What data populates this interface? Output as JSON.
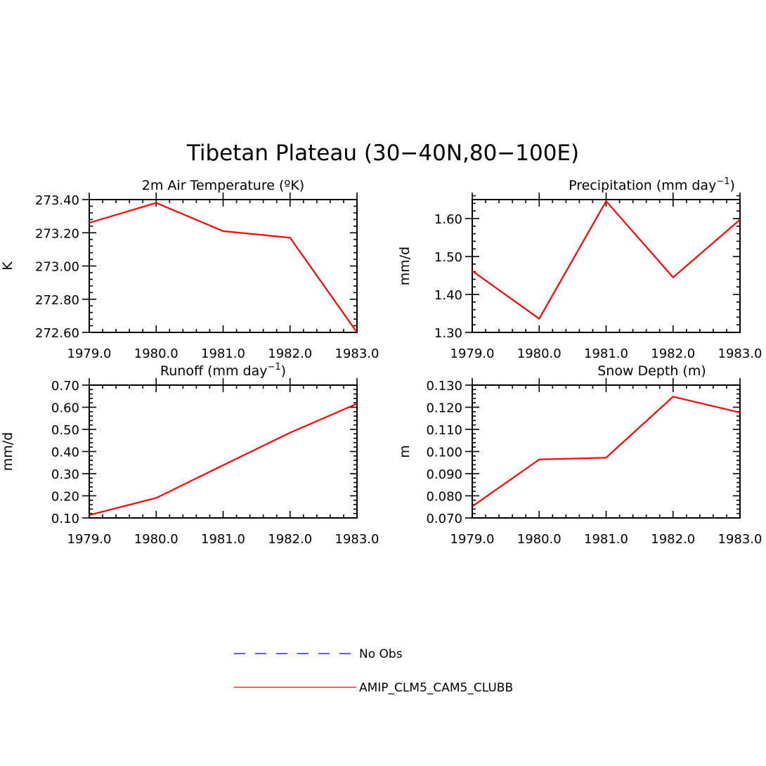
{
  "figure_title": "Tibetan Plateau (30−40N,80−100E)",
  "chart_data": [
    {
      "type": "line",
      "title": "2m Air Temperature (ºK)",
      "xlabel": "",
      "ylabel": "K",
      "x": [
        1979.0,
        1980.0,
        1981.0,
        1982.0,
        1983.0
      ],
      "xticks": [
        "1979.0",
        "1980.0",
        "1981.0",
        "1982.0",
        "1983.0"
      ],
      "xlim": [
        1979.0,
        1983.0
      ],
      "ylim": [
        272.6,
        273.4
      ],
      "yticks": [
        272.6,
        272.8,
        273.0,
        273.2,
        273.4
      ],
      "ytick_labels": [
        "272.60",
        "272.80",
        "273.00",
        "273.20",
        "273.40"
      ],
      "series": [
        {
          "name": "AMIP_CLM5_CAM5_CLUBB",
          "color": "#ff0000",
          "values": [
            273.26,
            273.38,
            273.21,
            273.17,
            272.6
          ]
        }
      ]
    },
    {
      "type": "line",
      "title": "Precipitation (mm day",
      "title_sup": "−1",
      "title_end": ")",
      "xlabel": "",
      "ylabel": "mm/d",
      "x": [
        1979.0,
        1980.0,
        1981.0,
        1982.0,
        1983.0
      ],
      "xticks": [
        "1979.0",
        "1980.0",
        "1981.0",
        "1982.0",
        "1983.0"
      ],
      "xlim": [
        1979.0,
        1983.0
      ],
      "ylim": [
        1.3,
        1.65
      ],
      "yticks": [
        1.3,
        1.4,
        1.5,
        1.6
      ],
      "ytick_labels": [
        "1.30",
        "1.40",
        "1.50",
        "1.60"
      ],
      "series": [
        {
          "name": "AMIP_CLM5_CAM5_CLUBB",
          "color": "#ff0000",
          "values": [
            1.462,
            1.336,
            1.646,
            1.445,
            1.597
          ]
        }
      ]
    },
    {
      "type": "line",
      "title": "Runoff (mm day",
      "title_sup": "−1",
      "title_end": ")",
      "xlabel": "",
      "ylabel": "mm/d",
      "x": [
        1979.0,
        1980.0,
        1981.0,
        1982.0,
        1983.0
      ],
      "xticks": [
        "1979.0",
        "1980.0",
        "1981.0",
        "1982.0",
        "1983.0"
      ],
      "xlim": [
        1979.0,
        1983.0
      ],
      "ylim": [
        0.1,
        0.7
      ],
      "yticks": [
        0.1,
        0.2,
        0.3,
        0.4,
        0.5,
        0.6,
        0.7
      ],
      "ytick_labels": [
        "0.10",
        "0.20",
        "0.30",
        "0.40",
        "0.50",
        "0.60",
        "0.70"
      ],
      "series": [
        {
          "name": "AMIP_CLM5_CAM5_CLUBB",
          "color": "#ff0000",
          "values": [
            0.113,
            0.19,
            0.338,
            0.485,
            0.616
          ]
        }
      ]
    },
    {
      "type": "line",
      "title": "Snow Depth (m)",
      "xlabel": "",
      "ylabel": "m",
      "x": [
        1979.0,
        1980.0,
        1981.0,
        1982.0,
        1983.0
      ],
      "xticks": [
        "1979.0",
        "1980.0",
        "1981.0",
        "1982.0",
        "1983.0"
      ],
      "xlim": [
        1979.0,
        1983.0
      ],
      "ylim": [
        0.07,
        0.13
      ],
      "yticks": [
        0.07,
        0.08,
        0.09,
        0.1,
        0.11,
        0.12,
        0.13
      ],
      "ytick_labels": [
        "0.070",
        "0.080",
        "0.090",
        "0.100",
        "0.110",
        "0.120",
        "0.130"
      ],
      "series": [
        {
          "name": "AMIP_CLM5_CAM5_CLUBB",
          "color": "#ff0000",
          "values": [
            0.0752,
            0.0964,
            0.0972,
            0.1248,
            0.1176
          ]
        }
      ]
    }
  ],
  "legend": {
    "placement": "bottom-center",
    "items": [
      {
        "label": "No Obs",
        "color": "#0000ff",
        "style": "dashed"
      },
      {
        "label": "AMIP_CLM5_CAM5_CLUBB",
        "color": "#ff0000",
        "style": "solid"
      }
    ]
  }
}
